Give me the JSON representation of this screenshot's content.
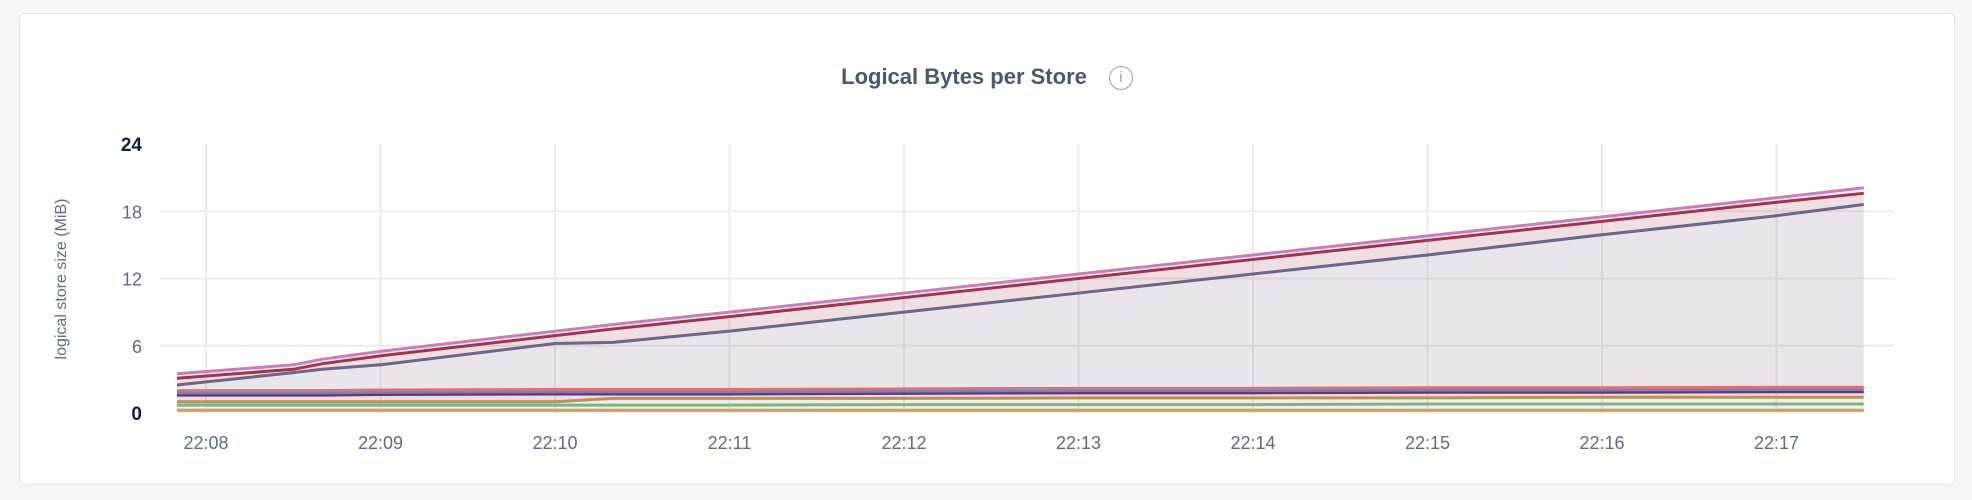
{
  "chart_data": {
    "type": "area",
    "stacked": true,
    "title": "Logical Bytes per Store",
    "ylabel": "logical store size (MiB)",
    "xlabel": "",
    "ylim": [
      0,
      24
    ],
    "yticks": [
      "0",
      "6",
      "12",
      "18",
      "24"
    ],
    "xticks": [
      "22:08",
      "22:09",
      "22:10",
      "22:11",
      "22:12",
      "22:13",
      "22:14",
      "22:15",
      "22:16",
      "22:17"
    ],
    "grid": true,
    "x": [
      "22:07:50",
      "22:08:30",
      "22:08:40",
      "22:09:00",
      "22:10:00",
      "22:10:20",
      "22:11:00",
      "22:12:00",
      "22:13:00",
      "22:14:00",
      "22:15:00",
      "22:16:00",
      "22:17:00",
      "22:17:30"
    ],
    "series": [
      {
        "color": "#d49a5a",
        "values": [
          0.25,
          0.25,
          0.25,
          0.25,
          0.25,
          0.25,
          0.25,
          0.25,
          0.25,
          0.25,
          0.25,
          0.25,
          0.25,
          0.25
        ]
      },
      {
        "color": "#7db58a",
        "values": [
          0.45,
          0.45,
          0.45,
          0.45,
          0.45,
          0.45,
          0.45,
          0.5,
          0.5,
          0.5,
          0.55,
          0.55,
          0.55,
          0.55
        ]
      },
      {
        "color": "#b8935a",
        "values": [
          0.3,
          0.3,
          0.3,
          0.3,
          0.3,
          0.6,
          0.6,
          0.55,
          0.6,
          0.6,
          0.55,
          0.6,
          0.6,
          0.6
        ]
      },
      {
        "color": "#7a2d6a",
        "values": [
          0.6,
          0.6,
          0.6,
          0.65,
          0.7,
          0.4,
          0.4,
          0.45,
          0.45,
          0.45,
          0.5,
          0.45,
          0.5,
          0.5
        ]
      },
      {
        "color": "#5b8bc4",
        "values": [
          0.2,
          0.2,
          0.2,
          0.2,
          0.2,
          0.2,
          0.2,
          0.2,
          0.2,
          0.2,
          0.2,
          0.2,
          0.2,
          0.2
        ]
      },
      {
        "color": "#e07070",
        "values": [
          0.2,
          0.2,
          0.2,
          0.2,
          0.2,
          0.2,
          0.2,
          0.2,
          0.2,
          0.2,
          0.2,
          0.2,
          0.2,
          0.2
        ]
      },
      {
        "color": "#6e6685",
        "values": [
          0.5,
          1.6,
          1.9,
          2.25,
          4.1,
          4.2,
          5.2,
          6.85,
          8.5,
          10.2,
          11.85,
          13.65,
          15.3,
          16.3
        ]
      },
      {
        "color": "#9b3550",
        "values": [
          0.6,
          0.3,
          0.5,
          0.8,
          0.7,
          1.2,
          1.3,
          1.3,
          1.3,
          1.3,
          1.3,
          1.2,
          1.2,
          1.0
        ]
      },
      {
        "color": "#c77fb8",
        "values": [
          0.4,
          0.4,
          0.4,
          0.4,
          0.4,
          0.4,
          0.4,
          0.4,
          0.4,
          0.4,
          0.4,
          0.4,
          0.4,
          0.5
        ]
      }
    ]
  },
  "info_icon": "info-icon"
}
